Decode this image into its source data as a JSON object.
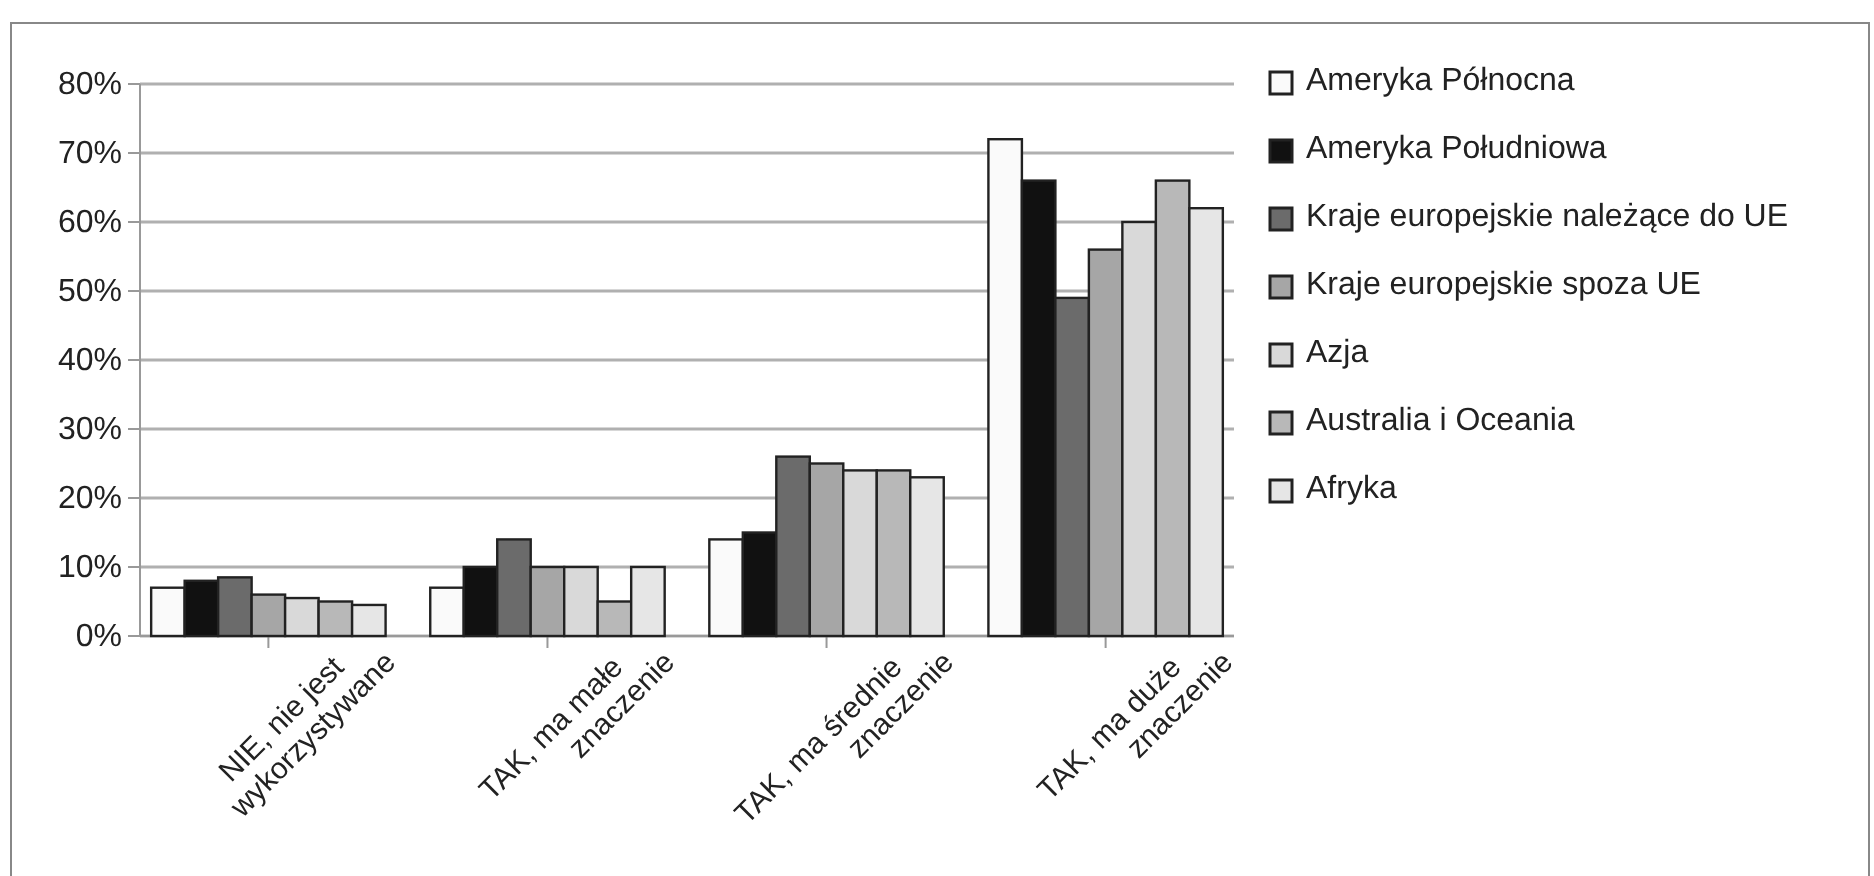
{
  "chart_data": {
    "type": "bar",
    "categories": [
      "NIE, nie jest wykorzystywane",
      "TAK, ma małe znaczenie",
      "TAK, ma średnie znaczenie",
      "TAK, ma duże znaczenie"
    ],
    "series": [
      {
        "name": "Ameryka Północna",
        "color": "#fafafa",
        "values": [
          7,
          7,
          14,
          72
        ]
      },
      {
        "name": "Ameryka Południowa",
        "color": "#111111",
        "values": [
          8,
          10,
          15,
          66
        ]
      },
      {
        "name": "Kraje europejskie należące do UE",
        "color": "#6b6b6b",
        "values": [
          8.5,
          14,
          26,
          49
        ]
      },
      {
        "name": "Kraje europejskie spoza UE",
        "color": "#a6a6a6",
        "values": [
          6,
          10,
          25,
          56
        ]
      },
      {
        "name": "Azja",
        "color": "#d9d9d9",
        "values": [
          5.5,
          10,
          24,
          60
        ]
      },
      {
        "name": "Australia i Oceania",
        "color": "#b8b8b8",
        "values": [
          5,
          5,
          24,
          66
        ]
      },
      {
        "name": "Afryka",
        "color": "#e6e6e6",
        "values": [
          4.5,
          10,
          23,
          62
        ]
      }
    ],
    "ylim": [
      0,
      80
    ],
    "yticks": [
      {
        "value": 0,
        "label": "0%"
      },
      {
        "value": 10,
        "label": "10%"
      },
      {
        "value": 20,
        "label": "20%"
      },
      {
        "value": 30,
        "label": "30%"
      },
      {
        "value": 40,
        "label": "40%"
      },
      {
        "value": 50,
        "label": "50%"
      },
      {
        "value": 60,
        "label": "60%"
      },
      {
        "value": 70,
        "label": "70%"
      },
      {
        "value": 80,
        "label": "80%"
      }
    ],
    "grid": "y",
    "legend": "right"
  }
}
